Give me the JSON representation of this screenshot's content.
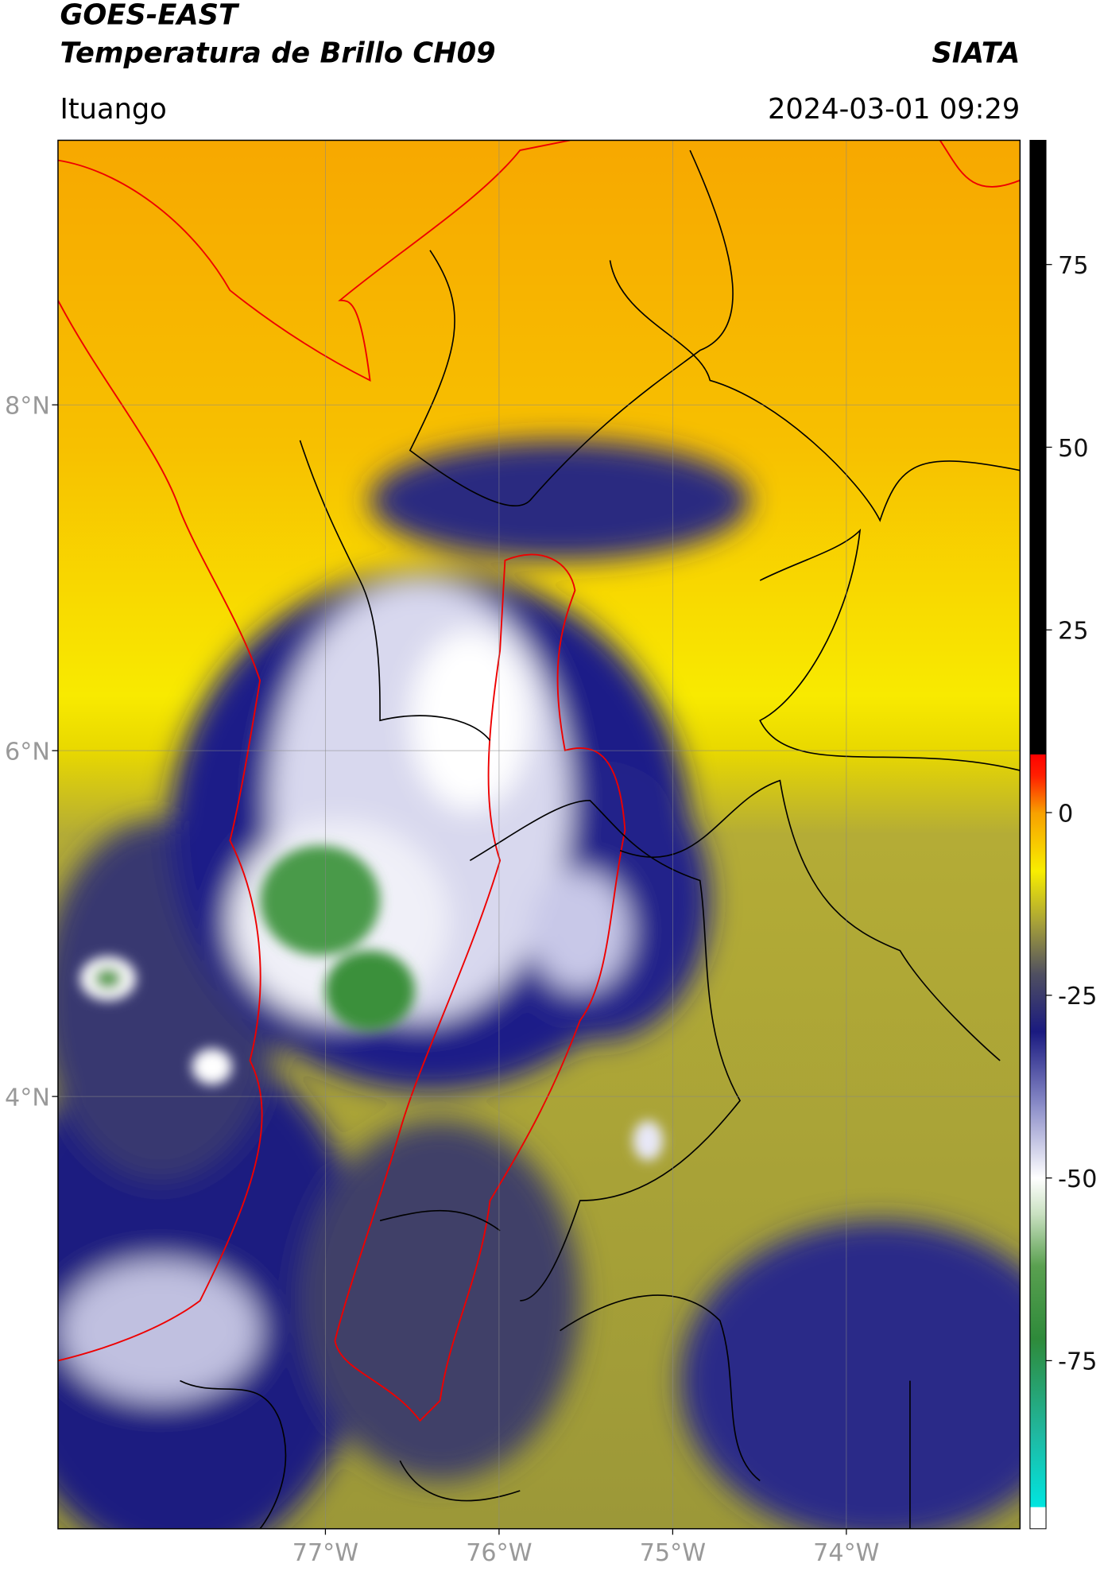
{
  "header": {
    "title": "GOES-EAST",
    "subtitle": "Temperatura de Brillo CH09",
    "source": "SIATA",
    "region": "Ituango",
    "datetime": "2024-03-01 09:29"
  },
  "map": {
    "lonlim": [
      -78.54,
      -73.0
    ],
    "latlim": [
      1.5,
      9.53
    ],
    "grid": true,
    "xticks": [
      {
        "value": -77,
        "label": "77°W"
      },
      {
        "value": -76,
        "label": "76°W"
      },
      {
        "value": -75,
        "label": "75°W"
      },
      {
        "value": -74,
        "label": "74°W"
      }
    ],
    "yticks": [
      {
        "value": 8,
        "label": "8°N"
      },
      {
        "value": 6,
        "label": "6°N"
      },
      {
        "value": 4,
        "label": "4°N"
      }
    ]
  },
  "colorbar": {
    "lim": [
      -98,
      92
    ],
    "ticks": [
      75,
      50,
      25,
      0,
      -25,
      -50,
      -75
    ],
    "stops": [
      {
        "value": -98,
        "color": "#ffffff"
      },
      {
        "value": -95,
        "color": "#ffffff"
      },
      {
        "value": -95,
        "color": "#00e5e0"
      },
      {
        "value": -85,
        "color": "#20b8a0"
      },
      {
        "value": -72,
        "color": "#2e8a3a"
      },
      {
        "value": -62,
        "color": "#5aa050"
      },
      {
        "value": -55,
        "color": "#c8e0c0"
      },
      {
        "value": -50,
        "color": "#ffffff"
      },
      {
        "value": -40,
        "color": "#8a8cc8"
      },
      {
        "value": -30,
        "color": "#1a1a80"
      },
      {
        "value": -22,
        "color": "#505060"
      },
      {
        "value": -15,
        "color": "#a8a238"
      },
      {
        "value": -8,
        "color": "#f8ee00"
      },
      {
        "value": 0,
        "color": "#f8a000"
      },
      {
        "value": 5,
        "color": "#ff2000"
      },
      {
        "value": 8,
        "color": "#ff0000"
      },
      {
        "value": 8,
        "color": "#000000"
      },
      {
        "value": 92,
        "color": "#000000"
      }
    ]
  }
}
